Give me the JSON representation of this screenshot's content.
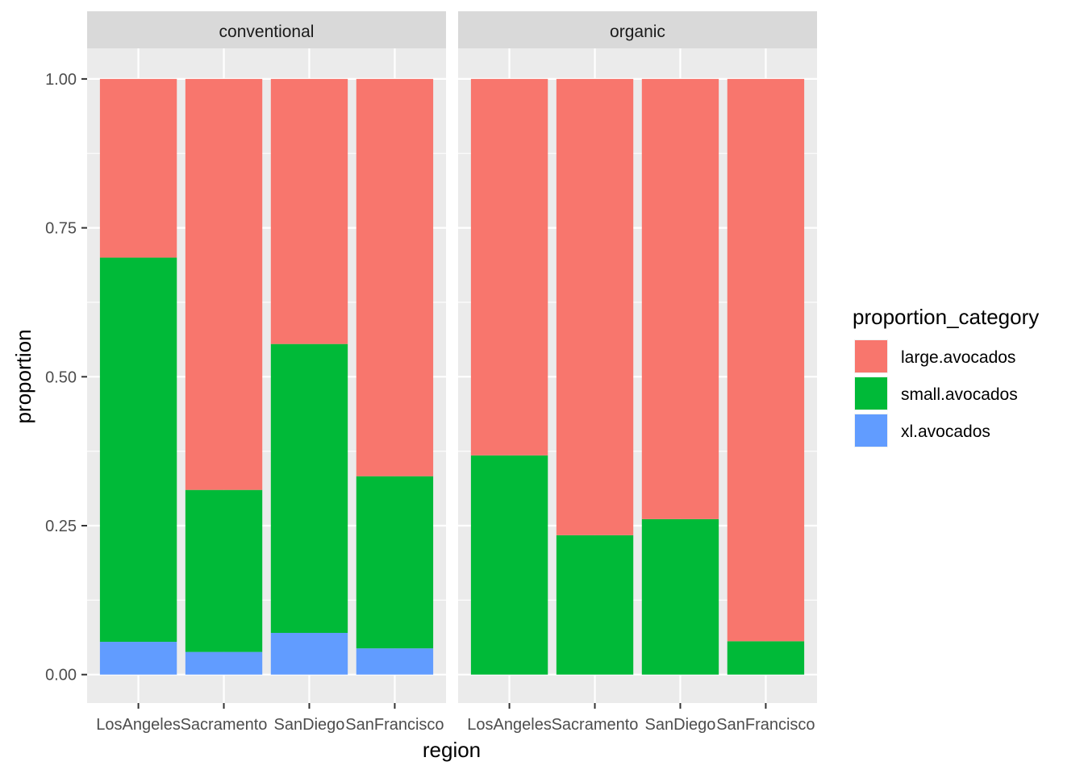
{
  "chart_data": {
    "type": "bar",
    "stacked": true,
    "facet_variable": "type",
    "facets": [
      {
        "name": "conventional",
        "categories": [
          "LosAngeles",
          "Sacramento",
          "SanDiego",
          "SanFrancisco"
        ],
        "series": [
          {
            "name": "large.avocados",
            "values": [
              0.3,
              0.69,
              0.445,
              0.667
            ]
          },
          {
            "name": "small.avocados",
            "values": [
              0.645,
              0.272,
              0.485,
              0.289
            ]
          },
          {
            "name": "xl.avocados",
            "values": [
              0.055,
              0.038,
              0.07,
              0.044
            ]
          }
        ]
      },
      {
        "name": "organic",
        "categories": [
          "LosAngeles",
          "Sacramento",
          "SanDiego",
          "SanFrancisco"
        ],
        "series": [
          {
            "name": "large.avocados",
            "values": [
              0.632,
              0.766,
              0.739,
              0.944
            ]
          },
          {
            "name": "small.avocados",
            "values": [
              0.368,
              0.234,
              0.261,
              0.056
            ]
          },
          {
            "name": "xl.avocados",
            "values": [
              0.0,
              0.0,
              0.0,
              0.0
            ]
          }
        ]
      }
    ],
    "xlabel": "region",
    "ylabel": "proportion",
    "ylim": [
      0,
      1
    ],
    "yticks": [
      0.0,
      0.25,
      0.5,
      0.75,
      1.0
    ],
    "ytick_labels": [
      "0.00",
      "0.25",
      "0.50",
      "0.75",
      "1.00"
    ],
    "legend": {
      "title": "proportion_category",
      "placement": "right",
      "entries": [
        "large.avocados",
        "small.avocados",
        "xl.avocados"
      ]
    },
    "colors": {
      "large.avocados": "#F8766D",
      "small.avocados": "#00BA38",
      "xl.avocados": "#619CFF",
      "panel_background": "#EBEBEB",
      "strip_background": "#D9D9D9",
      "grid": "#FFFFFF"
    },
    "grid": true
  }
}
